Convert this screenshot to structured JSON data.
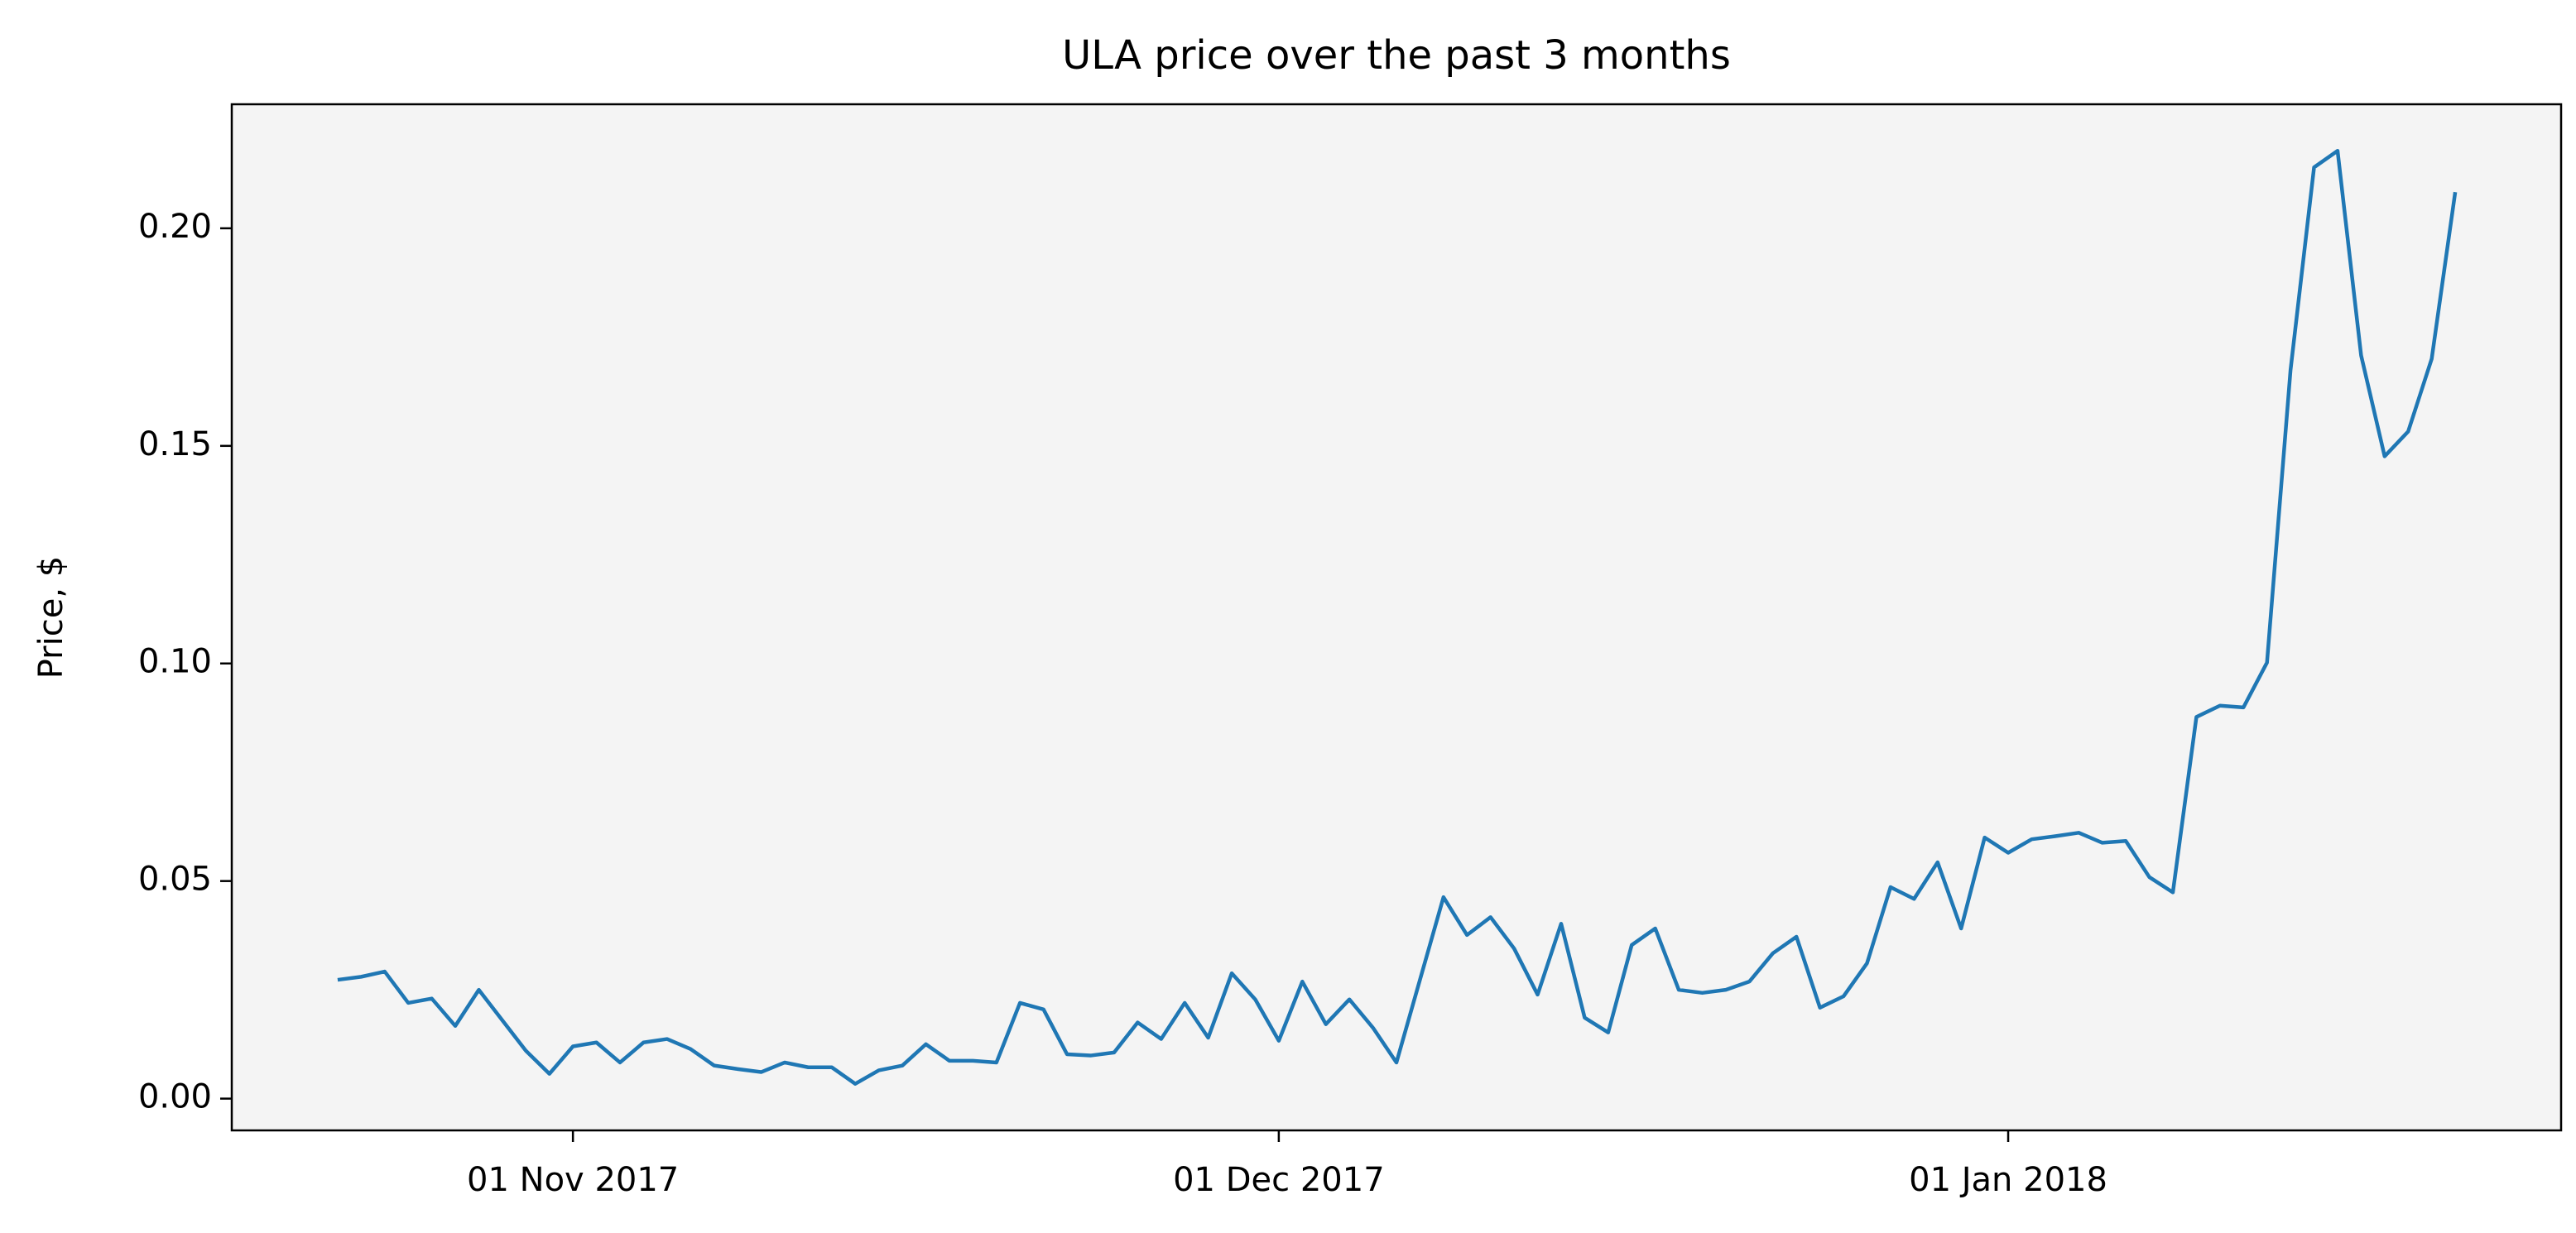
{
  "chart_data": {
    "type": "line",
    "title": "ULA price over the past 3 months",
    "ylabel": "Price, $",
    "color": "#1f77b4",
    "x": [
      "2017-10-22",
      "2017-10-23",
      "2017-10-24",
      "2017-10-25",
      "2017-10-26",
      "2017-10-27",
      "2017-10-28",
      "2017-10-29",
      "2017-10-30",
      "2017-10-31",
      "2017-11-01",
      "2017-11-02",
      "2017-11-03",
      "2017-11-04",
      "2017-11-05",
      "2017-11-06",
      "2017-11-07",
      "2017-11-08",
      "2017-11-09",
      "2017-11-10",
      "2017-11-11",
      "2017-11-12",
      "2017-11-13",
      "2017-11-14",
      "2017-11-15",
      "2017-11-16",
      "2017-11-17",
      "2017-11-18",
      "2017-11-19",
      "2017-11-20",
      "2017-11-21",
      "2017-11-22",
      "2017-11-23",
      "2017-11-24",
      "2017-11-25",
      "2017-11-26",
      "2017-11-27",
      "2017-11-28",
      "2017-11-29",
      "2017-11-30",
      "2017-12-01",
      "2017-12-02",
      "2017-12-03",
      "2017-12-04",
      "2017-12-05",
      "2017-12-06",
      "2017-12-07",
      "2017-12-08",
      "2017-12-09",
      "2017-12-10",
      "2017-12-11",
      "2017-12-12",
      "2017-12-13",
      "2017-12-14",
      "2017-12-15",
      "2017-12-16",
      "2017-12-17",
      "2017-12-18",
      "2017-12-19",
      "2017-12-20",
      "2017-12-21",
      "2017-12-22",
      "2017-12-23",
      "2017-12-24",
      "2017-12-25",
      "2017-12-26",
      "2017-12-27",
      "2017-12-28",
      "2017-12-29",
      "2017-12-30",
      "2017-12-31",
      "2018-01-01",
      "2018-01-02",
      "2018-01-03",
      "2018-01-04",
      "2018-01-05",
      "2018-01-06",
      "2018-01-07",
      "2018-01-08",
      "2018-01-09",
      "2018-01-10",
      "2018-01-11",
      "2018-01-12",
      "2018-01-13",
      "2018-01-14",
      "2018-01-15",
      "2018-01-16",
      "2018-01-17",
      "2018-01-18",
      "2018-01-19",
      "2018-01-20"
    ],
    "values": [
      0.0273,
      0.028,
      0.0292,
      0.022,
      0.023,
      0.0167,
      0.025,
      0.018,
      0.011,
      0.0057,
      0.012,
      0.0129,
      0.0083,
      0.0129,
      0.0137,
      0.0114,
      0.0076,
      0.0068,
      0.0061,
      0.0083,
      0.0072,
      0.0072,
      0.0034,
      0.0065,
      0.0076,
      0.0125,
      0.0087,
      0.0087,
      0.0083,
      0.022,
      0.0205,
      0.0102,
      0.0099,
      0.0106,
      0.0175,
      0.0137,
      0.022,
      0.014,
      0.0288,
      0.0228,
      0.0133,
      0.0269,
      0.0171,
      0.0228,
      0.0163,
      0.0083,
      0.0273,
      0.0463,
      0.0376,
      0.0417,
      0.0345,
      0.0239,
      0.0402,
      0.0186,
      0.0152,
      0.0353,
      0.0391,
      0.025,
      0.0243,
      0.025,
      0.0269,
      0.0334,
      0.0372,
      0.0209,
      0.0235,
      0.0311,
      0.0486,
      0.0459,
      0.0543,
      0.0391,
      0.06,
      0.0565,
      0.0596,
      0.0603,
      0.0611,
      0.0588,
      0.0592,
      0.0509,
      0.0474,
      0.0877,
      0.0903,
      0.0899,
      0.1002,
      0.1674,
      0.214,
      0.2178,
      0.1708,
      0.1476,
      0.1533,
      0.17,
      0.2083
    ],
    "xlim": [
      "2017-10-17T12:00Z",
      "2018-01-24T12:00Z"
    ],
    "xticks": [
      {
        "value": "2017-11-01",
        "label": "01 Nov 2017"
      },
      {
        "value": "2017-12-01",
        "label": "01 Dec 2017"
      },
      {
        "value": "2018-01-01",
        "label": "01 Jan 2018"
      }
    ],
    "ylim": [
      -0.0073,
      0.2285
    ],
    "yticks": [
      {
        "value": 0,
        "label": "0.00"
      },
      {
        "value": 0.05,
        "label": "0.05"
      },
      {
        "value": 0.1,
        "label": "0.10"
      },
      {
        "value": 0.15,
        "label": "0.15"
      },
      {
        "value": 0.2,
        "label": "0.20"
      }
    ]
  }
}
